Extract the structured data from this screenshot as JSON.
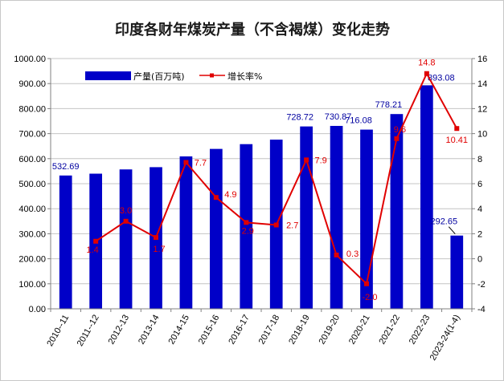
{
  "chart_data": {
    "type": "bar",
    "title": "印度各财年煤炭产量（不含褐煤）变化走势",
    "categories": [
      "2010--11",
      "2011--12",
      "2012-13",
      "2013-14",
      "2014-15",
      "2015-16",
      "2016-17",
      "2017-18",
      "2018-19",
      "2019-20",
      "2020-21",
      "2021-22",
      "2022-23",
      "2023-24(1-4)"
    ],
    "series": [
      {
        "name": "产量(百万吨)",
        "type": "bar",
        "axis": "left",
        "color": "#0000c8",
        "values": [
          532.69,
          540.0,
          557.0,
          566.0,
          609.0,
          639.0,
          658.0,
          676.0,
          728.72,
          730.87,
          716.08,
          778.21,
          893.08,
          292.65
        ],
        "labels": [
          "532.69",
          "",
          "",
          "",
          "",
          "",
          "",
          "",
          "728.72",
          "730.87",
          "716.08",
          "778.21",
          "893.08",
          "292.65"
        ]
      },
      {
        "name": "增长率%",
        "type": "line",
        "axis": "right",
        "color": "#e00000",
        "values": [
          null,
          1.4,
          3.0,
          1.7,
          7.7,
          4.9,
          2.9,
          2.7,
          7.9,
          0.3,
          -2.0,
          9.6,
          14.8,
          10.41
        ],
        "labels": [
          "",
          "1.4",
          "3.0",
          "1.7",
          "7.7",
          "4.9",
          "2.9",
          "2.7",
          "7.9",
          "0.3",
          "-2.0",
          "9.6",
          "14.8",
          "10.41"
        ]
      }
    ],
    "y_left": {
      "range": [
        0,
        1000
      ],
      "ticks": [
        "0.00",
        "100.00",
        "200.00",
        "300.00",
        "400.00",
        "500.00",
        "600.00",
        "700.00",
        "800.00",
        "900.00",
        "1000.00"
      ]
    },
    "y_right": {
      "range": [
        -4,
        16
      ],
      "ticks": [
        "-4",
        "-2",
        "0",
        "2",
        "4",
        "6",
        "8",
        "10",
        "12",
        "14",
        "16"
      ]
    },
    "grid": true,
    "legend": "top"
  }
}
